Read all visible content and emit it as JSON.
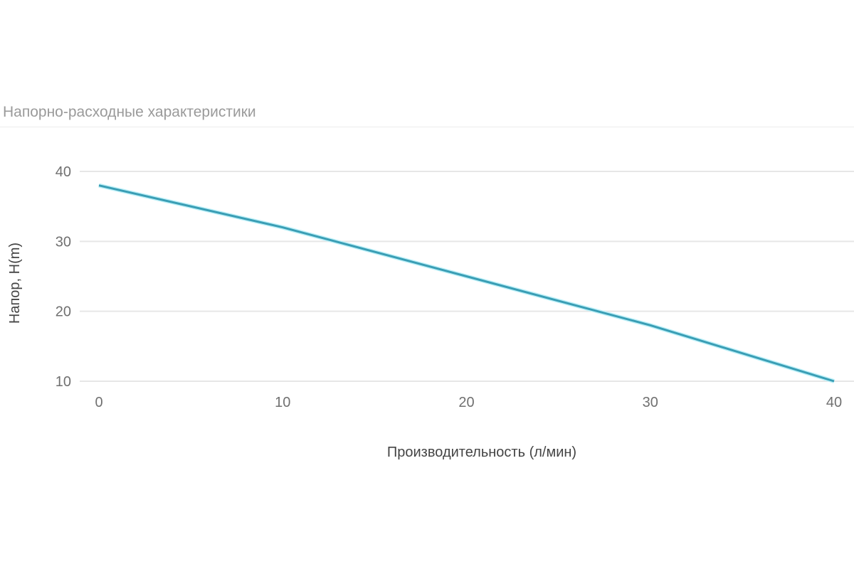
{
  "chart_data": {
    "type": "line",
    "title": "Напорно-расходные характеристики",
    "xlabel": "Производительность (л/мин)",
    "ylabel": "Напор, H(m)",
    "x": [
      0,
      10,
      20,
      30,
      40
    ],
    "series": [
      {
        "values": [
          38,
          32,
          25,
          18,
          10
        ],
        "color": "#3a9eb5"
      }
    ],
    "xlim": [
      0,
      40
    ],
    "ylim": [
      10,
      40
    ],
    "xticks": [
      0,
      10,
      20,
      30,
      40
    ],
    "yticks": [
      10,
      20,
      30,
      40
    ],
    "grid": "horizontal",
    "gridColor": "#e6e6e6"
  }
}
